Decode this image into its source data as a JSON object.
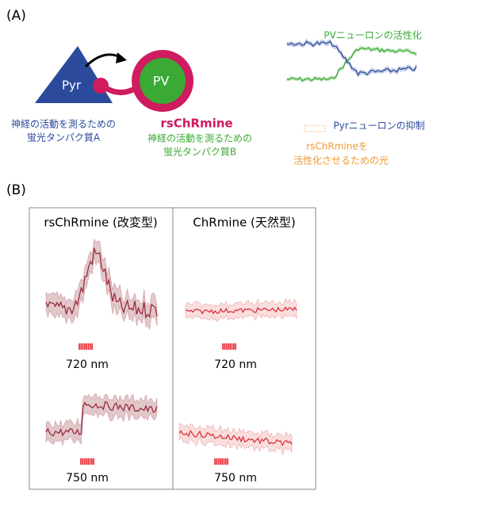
{
  "panel_a": {
    "label": "(A)",
    "pyr": "Pyr",
    "pv": "PV",
    "sensor_a": [
      "神経の活動を測るための",
      "蛍光タンパク質A"
    ],
    "opsin": "rsChRmine",
    "sensor_b": [
      "神経の活動を測るための",
      "蛍光タンパク質B"
    ],
    "pv_activation": "PVニューロンの活性化",
    "pyr_inhibition": "Pyrニューロンの抑制",
    "light": [
      "rsChRmineを",
      "活性化させるための光"
    ]
  },
  "panel_b": {
    "label": "(B)",
    "columns": [
      "rsChRmine (改変型)",
      "ChRmine (天然型)"
    ],
    "wavelengths": [
      "720 nm",
      "750 nm"
    ]
  }
}
